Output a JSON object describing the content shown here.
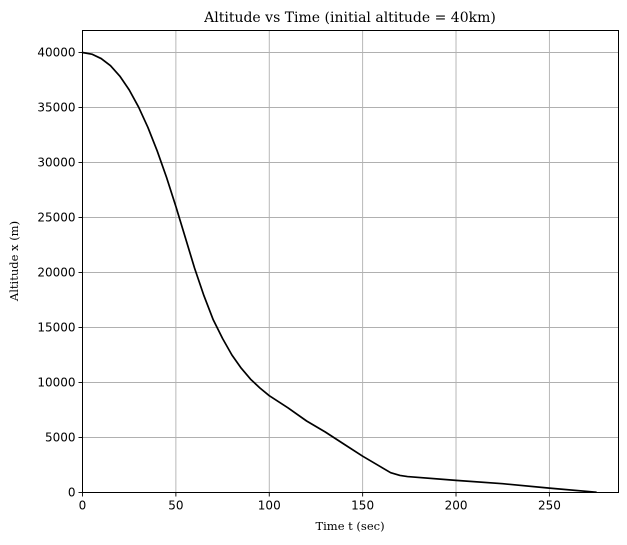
{
  "chart_data": {
    "type": "line",
    "title": "Altitude vs Time (initial altitude = 40km)",
    "xlabel": "Time t (sec)",
    "ylabel": "Altitude x (m)",
    "xlim": [
      0,
      287
    ],
    "ylim": [
      0,
      42000
    ],
    "xticks": [
      0,
      50,
      100,
      150,
      200,
      250
    ],
    "yticks": [
      0,
      5000,
      10000,
      15000,
      20000,
      25000,
      30000,
      35000,
      40000
    ],
    "grid": true,
    "line_color": "#000000",
    "series": [
      {
        "x": [
          0,
          5,
          10,
          15,
          20,
          25,
          30,
          35,
          40,
          45,
          50,
          55,
          60,
          65,
          70,
          75,
          80,
          85,
          90,
          95,
          100,
          110,
          120,
          130,
          140,
          150,
          160,
          165,
          170,
          174,
          200,
          225,
          250,
          275
        ],
        "values": [
          40000,
          39850,
          39450,
          38800,
          37850,
          36600,
          35050,
          33200,
          31050,
          28650,
          26000,
          23200,
          20400,
          17900,
          15700,
          14000,
          12500,
          11300,
          10300,
          9500,
          8800,
          7700,
          6500,
          5500,
          4400,
          3300,
          2300,
          1800,
          1550,
          1450,
          1100,
          800,
          400,
          30
        ]
      }
    ]
  }
}
